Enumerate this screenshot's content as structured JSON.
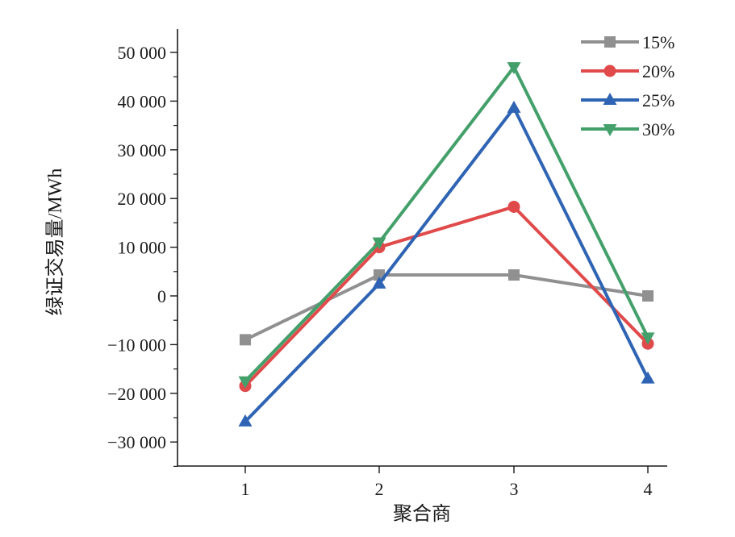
{
  "chart_data": {
    "type": "line",
    "title": "",
    "xlabel": "聚合商",
    "ylabel": "绿证交易量/MWh",
    "categories": [
      "1",
      "2",
      "3",
      "4"
    ],
    "x_tick_labels": [
      "1",
      "2",
      "3",
      "4"
    ],
    "ylim": [
      -35000,
      55000
    ],
    "y_ticks": [
      -30000,
      -20000,
      -10000,
      0,
      10000,
      20000,
      30000,
      40000,
      50000
    ],
    "y_tick_labels": [
      "−30 000",
      "−20 000",
      "−10 000",
      "0",
      "10 000",
      "20 000",
      "30 000",
      "40 000",
      "50 000"
    ],
    "grid": false,
    "legend_position": "top-right",
    "series": [
      {
        "name": "15%",
        "values": [
          -9000,
          4300,
          4300,
          0
        ],
        "color": "#909090",
        "marker": "square"
      },
      {
        "name": "20%",
        "values": [
          -18500,
          10000,
          18300,
          -9800
        ],
        "color": "#e04a4a",
        "marker": "circle"
      },
      {
        "name": "25%",
        "values": [
          -25800,
          2500,
          38600,
          -17000
        ],
        "color": "#2f64b4",
        "marker": "triangle-up"
      },
      {
        "name": "30%",
        "values": [
          -17500,
          11000,
          47000,
          -8500
        ],
        "color": "#44a06a",
        "marker": "triangle-down"
      }
    ]
  }
}
